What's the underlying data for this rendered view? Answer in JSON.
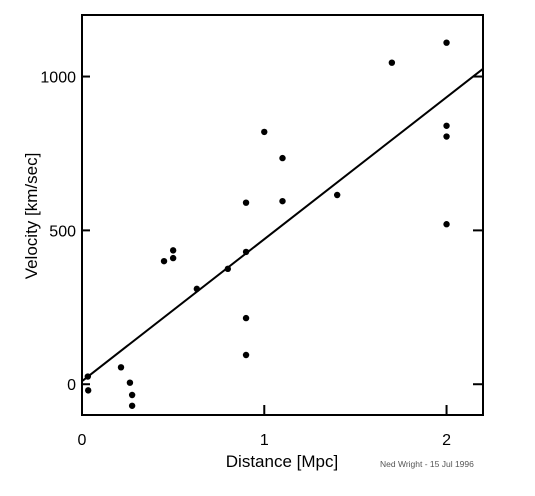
{
  "chart_data": {
    "type": "scatter",
    "title": "",
    "xlabel": "Distance [Mpc]",
    "ylabel": "Velocity [km/sec]",
    "xlim": [
      0,
      2.2
    ],
    "ylim": [
      -100,
      1200
    ],
    "xticks": [
      0,
      1,
      2
    ],
    "xtick_labels": [
      "0",
      "1",
      "2"
    ],
    "yticks": [
      0,
      500,
      1000
    ],
    "ytick_labels": [
      "0",
      "500",
      "1000"
    ],
    "grid": false,
    "legend": "none",
    "points": [
      {
        "x": 0.032,
        "y": 25
      },
      {
        "x": 0.034,
        "y": -20
      },
      {
        "x": 0.214,
        "y": 55
      },
      {
        "x": 0.263,
        "y": 5
      },
      {
        "x": 0.275,
        "y": -35
      },
      {
        "x": 0.275,
        "y": -70
      },
      {
        "x": 0.45,
        "y": 400
      },
      {
        "x": 0.5,
        "y": 410
      },
      {
        "x": 0.5,
        "y": 435
      },
      {
        "x": 0.63,
        "y": 310
      },
      {
        "x": 0.8,
        "y": 375
      },
      {
        "x": 0.9,
        "y": 590
      },
      {
        "x": 0.9,
        "y": 430
      },
      {
        "x": 0.9,
        "y": 215
      },
      {
        "x": 0.9,
        "y": 95
      },
      {
        "x": 1.0,
        "y": 820
      },
      {
        "x": 1.1,
        "y": 735
      },
      {
        "x": 1.1,
        "y": 595
      },
      {
        "x": 1.4,
        "y": 615
      },
      {
        "x": 1.7,
        "y": 1045
      },
      {
        "x": 2.0,
        "y": 1110
      },
      {
        "x": 2.0,
        "y": 840
      },
      {
        "x": 2.0,
        "y": 805
      },
      {
        "x": 2.0,
        "y": 520
      }
    ],
    "fit_line": {
      "x": [
        0,
        2.2
      ],
      "y": [
        10,
        1025
      ]
    },
    "annotation": "Ned Wright - 15 Jul 1996"
  },
  "style": {
    "point_color": "#000000",
    "line_color": "#000000",
    "frame_color": "#000000"
  }
}
